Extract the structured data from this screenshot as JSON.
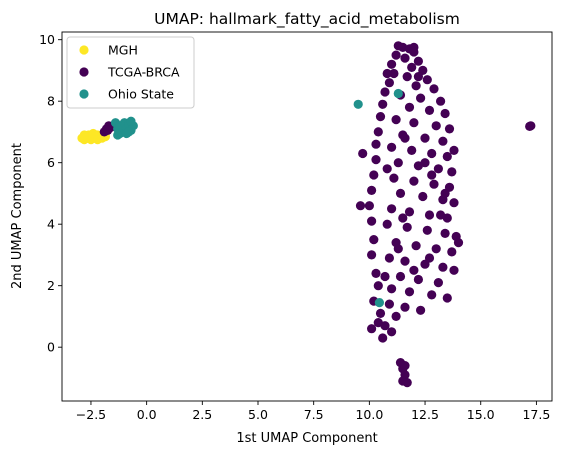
{
  "chart_data": {
    "type": "scatter",
    "title": "UMAP: hallmark_fatty_acid_metabolism",
    "xlabel": "1st UMAP Component",
    "ylabel": "2nd UMAP Component",
    "xlim": [
      -3.8,
      18.2
    ],
    "ylim": [
      -1.75,
      10.25
    ],
    "xticks": [
      -2.5,
      0.0,
      2.5,
      5.0,
      7.5,
      10.0,
      12.5,
      15.0,
      17.5
    ],
    "xtick_labels": [
      "−2.5",
      "0.0",
      "2.5",
      "5.0",
      "7.5",
      "10.0",
      "12.5",
      "15.0",
      "17.5"
    ],
    "yticks": [
      0,
      2,
      4,
      6,
      8,
      10
    ],
    "ytick_labels": [
      "0",
      "2",
      "4",
      "6",
      "8",
      "10"
    ],
    "grid": false,
    "legend_position": "top-left",
    "series": [
      {
        "name": "MGH",
        "color": "#fde725",
        "points": [
          [
            -2.9,
            6.8
          ],
          [
            -2.8,
            6.75
          ],
          [
            -2.7,
            6.85
          ],
          [
            -2.6,
            6.8
          ],
          [
            -2.5,
            6.75
          ],
          [
            -2.4,
            6.85
          ],
          [
            -2.3,
            6.8
          ],
          [
            -2.2,
            6.9
          ],
          [
            -2.1,
            6.85
          ],
          [
            -2.0,
            6.9
          ],
          [
            -1.9,
            6.95
          ],
          [
            -2.6,
            6.9
          ],
          [
            -2.4,
            6.95
          ],
          [
            -2.2,
            6.75
          ],
          [
            -2.0,
            6.8
          ],
          [
            -2.8,
            6.9
          ],
          [
            -1.85,
            6.85
          ]
        ]
      },
      {
        "name": "TCGA-BRCA",
        "color": "#440154",
        "points": [
          [
            -1.8,
            7.1
          ],
          [
            -1.7,
            7.2
          ],
          [
            -1.6,
            7.15
          ],
          [
            -1.9,
            7.0
          ],
          [
            -1.75,
            7.05
          ],
          [
            17.25,
            7.2
          ],
          [
            17.2,
            7.18
          ],
          [
            11.3,
            9.8
          ],
          [
            11.5,
            9.75
          ],
          [
            11.8,
            9.7
          ],
          [
            12.0,
            9.6
          ],
          [
            11.2,
            9.5
          ],
          [
            11.6,
            9.4
          ],
          [
            12.2,
            9.3
          ],
          [
            11.0,
            9.2
          ],
          [
            11.9,
            9.1
          ],
          [
            12.4,
            9.0
          ],
          [
            11.1,
            8.9
          ],
          [
            11.7,
            8.8
          ],
          [
            12.6,
            8.7
          ],
          [
            10.9,
            8.6
          ],
          [
            12.1,
            8.5
          ],
          [
            12.9,
            8.4
          ],
          [
            10.7,
            8.3
          ],
          [
            11.4,
            8.2
          ],
          [
            12.3,
            8.1
          ],
          [
            13.2,
            8.0
          ],
          [
            10.6,
            7.9
          ],
          [
            11.8,
            7.8
          ],
          [
            12.7,
            7.7
          ],
          [
            13.4,
            7.6
          ],
          [
            10.5,
            7.5
          ],
          [
            11.2,
            7.4
          ],
          [
            12.0,
            7.3
          ],
          [
            13.0,
            7.2
          ],
          [
            13.6,
            7.1
          ],
          [
            10.4,
            7.0
          ],
          [
            11.5,
            6.9
          ],
          [
            12.5,
            6.8
          ],
          [
            13.3,
            6.7
          ],
          [
            10.3,
            6.6
          ],
          [
            11.0,
            6.5
          ],
          [
            11.9,
            6.4
          ],
          [
            12.8,
            6.3
          ],
          [
            13.5,
            6.2
          ],
          [
            10.3,
            6.1
          ],
          [
            11.3,
            6.0
          ],
          [
            12.2,
            5.9
          ],
          [
            13.1,
            5.8
          ],
          [
            13.7,
            5.7
          ],
          [
            10.2,
            5.6
          ],
          [
            11.1,
            5.5
          ],
          [
            12.0,
            5.4
          ],
          [
            12.9,
            5.3
          ],
          [
            13.6,
            5.2
          ],
          [
            10.1,
            5.1
          ],
          [
            11.4,
            5.0
          ],
          [
            12.4,
            4.9
          ],
          [
            13.3,
            4.8
          ],
          [
            13.8,
            4.7
          ],
          [
            10.0,
            4.6
          ],
          [
            11.0,
            4.5
          ],
          [
            11.8,
            4.4
          ],
          [
            12.7,
            4.3
          ],
          [
            13.5,
            4.2
          ],
          [
            10.1,
            4.1
          ],
          [
            10.8,
            4.0
          ],
          [
            11.7,
            3.9
          ],
          [
            12.6,
            3.8
          ],
          [
            13.4,
            3.7
          ],
          [
            13.9,
            3.6
          ],
          [
            10.2,
            3.5
          ],
          [
            11.2,
            3.4
          ],
          [
            12.1,
            3.3
          ],
          [
            13.0,
            3.2
          ],
          [
            13.7,
            3.1
          ],
          [
            10.1,
            3.0
          ],
          [
            10.9,
            2.9
          ],
          [
            11.6,
            2.8
          ],
          [
            12.5,
            2.7
          ],
          [
            13.3,
            2.6
          ],
          [
            13.8,
            2.5
          ],
          [
            10.3,
            2.4
          ],
          [
            11.4,
            2.3
          ],
          [
            12.2,
            2.2
          ],
          [
            13.1,
            2.1
          ],
          [
            10.4,
            2.0
          ],
          [
            11.0,
            1.9
          ],
          [
            11.8,
            1.8
          ],
          [
            12.8,
            1.7
          ],
          [
            13.5,
            1.6
          ],
          [
            10.2,
            1.5
          ],
          [
            10.9,
            1.4
          ],
          [
            11.6,
            1.3
          ],
          [
            12.3,
            1.2
          ],
          [
            10.5,
            1.1
          ],
          [
            11.2,
            1.0
          ],
          [
            10.4,
            0.8
          ],
          [
            10.1,
            0.6
          ],
          [
            10.7,
            0.7
          ],
          [
            11.0,
            0.5
          ],
          [
            10.6,
            0.3
          ],
          [
            11.4,
            -0.5
          ],
          [
            11.5,
            -0.7
          ],
          [
            11.6,
            -0.9
          ],
          [
            11.5,
            -1.1
          ],
          [
            11.7,
            -1.15
          ],
          [
            11.6,
            -0.6
          ],
          [
            9.6,
            4.6
          ],
          [
            9.7,
            6.3
          ],
          [
            10.8,
            8.9
          ],
          [
            12.0,
            9.75
          ],
          [
            12.2,
            8.8
          ],
          [
            11.5,
            4.2
          ],
          [
            12.0,
            2.5
          ],
          [
            12.8,
            5.6
          ],
          [
            13.2,
            4.3
          ],
          [
            14.0,
            3.4
          ],
          [
            13.8,
            6.4
          ],
          [
            12.5,
            6.0
          ],
          [
            11.6,
            6.8
          ],
          [
            10.8,
            5.8
          ],
          [
            11.3,
            3.2
          ],
          [
            10.7,
            2.3
          ],
          [
            12.7,
            2.9
          ],
          [
            13.4,
            5.0
          ]
        ]
      },
      {
        "name": "Ohio State",
        "color": "#21918c",
        "points": [
          [
            -1.4,
            7.3
          ],
          [
            -1.3,
            7.1
          ],
          [
            -1.2,
            7.2
          ],
          [
            -1.1,
            7.0
          ],
          [
            -1.0,
            7.3
          ],
          [
            -0.9,
            7.1
          ],
          [
            -0.8,
            7.25
          ],
          [
            -0.7,
            7.05
          ],
          [
            -0.6,
            7.2
          ],
          [
            -1.2,
            6.95
          ],
          [
            -0.9,
            6.95
          ],
          [
            -0.7,
            7.35
          ],
          [
            -1.3,
            6.9
          ],
          [
            -0.8,
            7.0
          ],
          [
            9.5,
            7.9
          ],
          [
            11.3,
            8.25
          ],
          [
            10.45,
            1.45
          ]
        ]
      }
    ]
  }
}
